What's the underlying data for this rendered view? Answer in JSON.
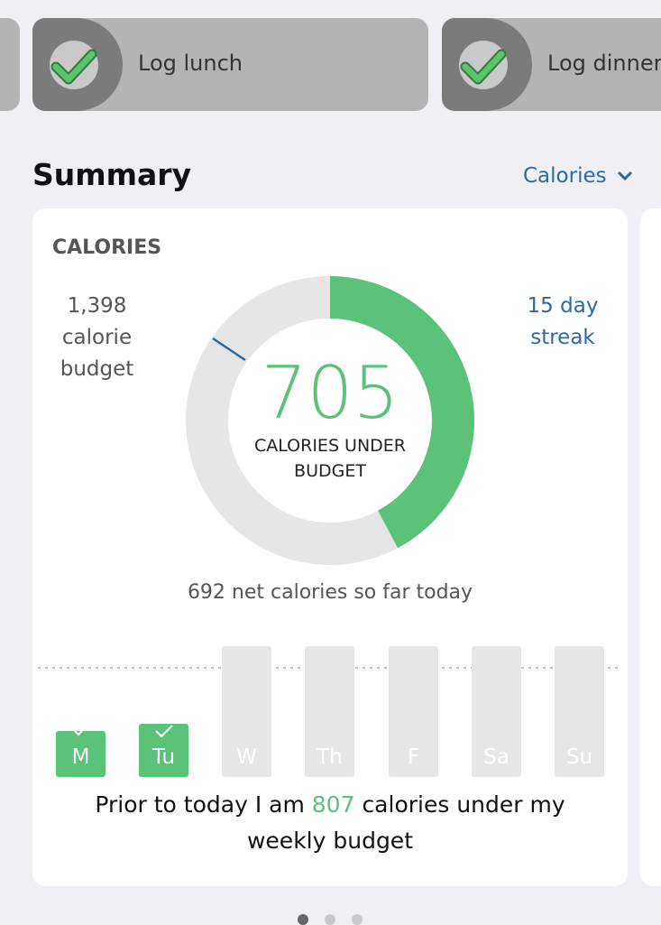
{
  "tasks": [
    {
      "label": "Log lunch"
    },
    {
      "label": "Log dinner"
    }
  ],
  "summary": {
    "title": "Summary",
    "selector": "Calories",
    "card": {
      "heading": "CALORIES",
      "budget": "1,398 calorie budget",
      "streak": "15 day streak",
      "remaining": "705",
      "remaining_label": "CALORIES UNDER BUDGET",
      "net": "692 net calories so far today",
      "days": [
        "M",
        "Tu",
        "W",
        "Th",
        "F",
        "Sa",
        "Su"
      ],
      "weekly_note": {
        "before": "Prior to today I am",
        "value": "807",
        "after": "calories under my weekly budget"
      }
    }
  }
}
